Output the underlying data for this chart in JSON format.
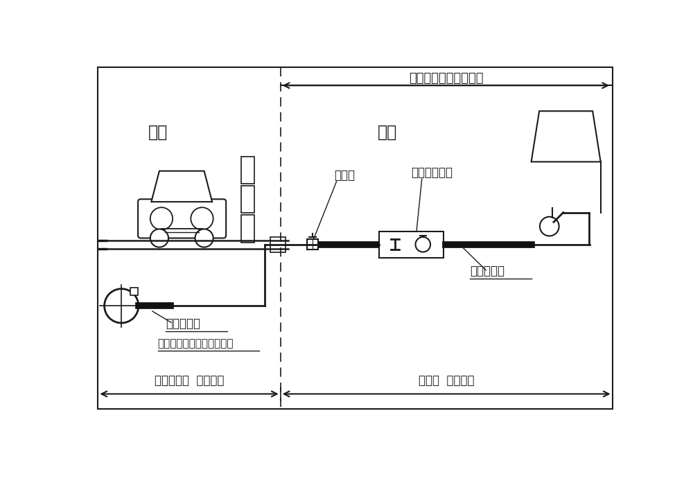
{
  "title": "給水管（お客様所有）",
  "label_road": "道路",
  "label_residential": "宅地",
  "label_stop_valve": "止水栓",
  "label_water_meter": "水道メーター",
  "label_lead_pipe1": "鉛製給水管",
  "label_lead_pipe2": "鉛製給水管",
  "label_distribution": "配水管（上下水道局所有）",
  "label_range1": "上下水道局  入替範囲",
  "label_range2": "お客様  入替範囲",
  "bg_color": "#ffffff",
  "line_color": "#1a1a1a",
  "thick_pipe_color": "#111111"
}
